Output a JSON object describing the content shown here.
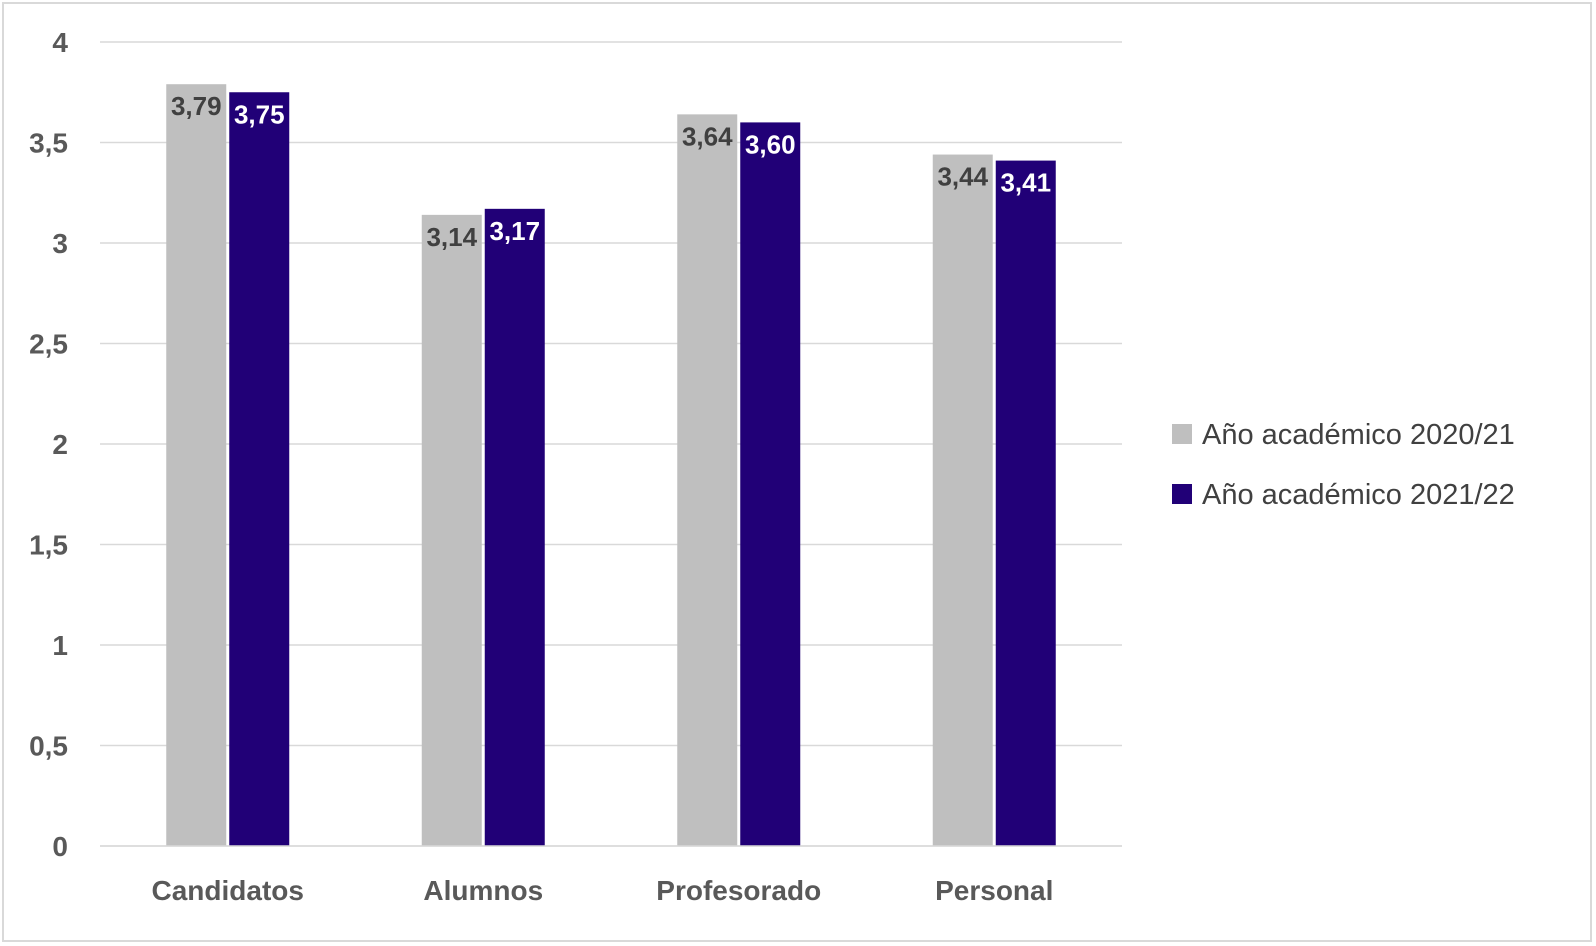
{
  "chart_data": {
    "type": "bar",
    "categories": [
      "Candidatos",
      "Alumnos",
      "Profesorado",
      "Personal"
    ],
    "series": [
      {
        "name": "Año académico 2020/21",
        "values": [
          3.79,
          3.14,
          3.64,
          3.44
        ],
        "labels": [
          "3,79",
          "3,14",
          "3,64",
          "3,44"
        ],
        "color": "#bfbfbf",
        "label_color": "#404040"
      },
      {
        "name": "Año académico 2021/22",
        "values": [
          3.75,
          3.17,
          3.6,
          3.41
        ],
        "labels": [
          "3,75",
          "3,17",
          "3,60",
          "3,41"
        ],
        "color": "#210077",
        "label_color": "#ffffff"
      }
    ],
    "yticks": [
      0,
      0.5,
      1,
      1.5,
      2,
      2.5,
      3,
      3.5,
      4
    ],
    "ytick_labels": [
      "0",
      "0,5",
      "1",
      "1,5",
      "2",
      "2,5",
      "3",
      "3,5",
      "4"
    ],
    "ylim": [
      0,
      4
    ],
    "title": "",
    "xlabel": "",
    "ylabel": "",
    "grid": true,
    "legend_position": "right",
    "gridline_color": "#d9d9d9"
  }
}
